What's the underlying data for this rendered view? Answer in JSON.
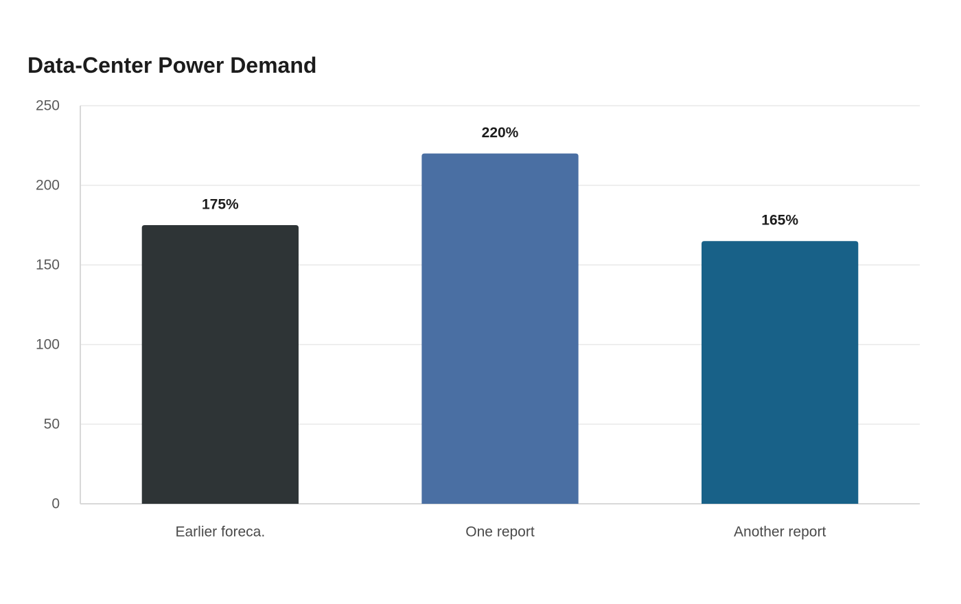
{
  "chart_data": {
    "type": "bar",
    "title": "Data-Center Power Demand",
    "categories": [
      "Earlier foreca.",
      "One report",
      "Another report"
    ],
    "values": [
      175,
      220,
      165
    ],
    "data_labels": [
      "175%",
      "220%",
      "165%"
    ],
    "colors": [
      "#2e3436",
      "#4a6fa3",
      "#186188"
    ],
    "ylim": [
      0,
      250
    ],
    "yticks": [
      0,
      50,
      100,
      150,
      200,
      250
    ],
    "xlabel": "",
    "ylabel": "",
    "grid": true,
    "legend": "none"
  }
}
